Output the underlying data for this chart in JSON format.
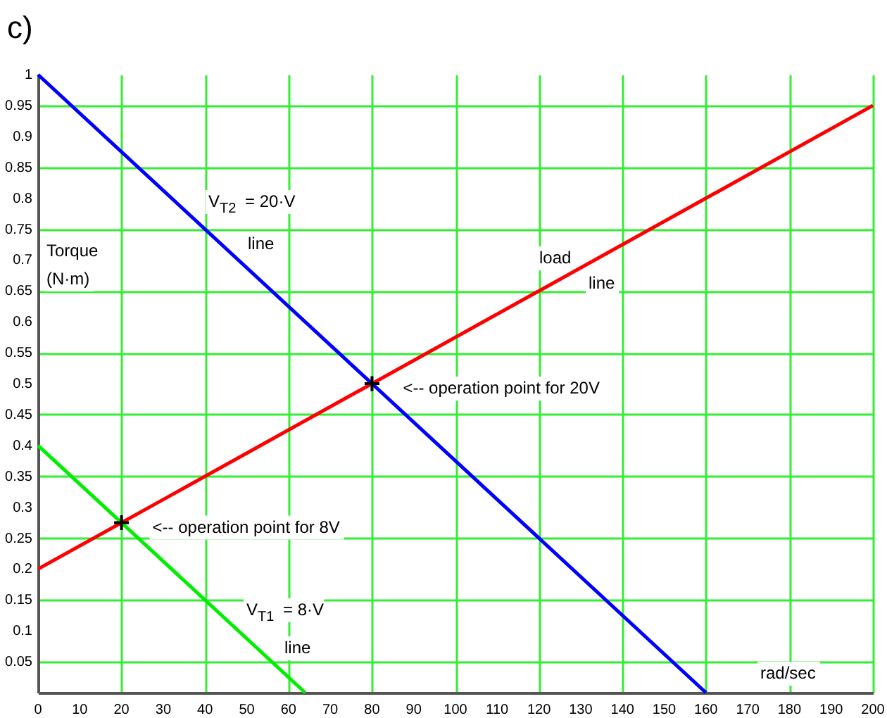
{
  "chart_data": {
    "type": "line",
    "title": "c)",
    "xlabel": "rad/sec",
    "ylabel": "Torque\n(N·m)",
    "xlim": [
      0,
      200
    ],
    "ylim": [
      0,
      1
    ],
    "xticks": [
      0,
      10,
      20,
      30,
      40,
      50,
      60,
      70,
      80,
      90,
      100,
      110,
      120,
      130,
      140,
      150,
      160,
      170,
      180,
      190,
      200
    ],
    "yticks": [
      0.05,
      0.1,
      0.15,
      0.2,
      0.25,
      0.3,
      0.35,
      0.4,
      0.45,
      0.5,
      0.55,
      0.6,
      0.65,
      0.7,
      0.75,
      0.8,
      0.85,
      0.9,
      0.95,
      1
    ],
    "grid": true,
    "series": [
      {
        "color": "#0000ff",
        "x": [
          0,
          160
        ],
        "values": [
          1,
          0
        ]
      },
      {
        "color": "#ff0000",
        "x": [
          0,
          200
        ],
        "values": [
          0.2,
          0.95
        ]
      },
      {
        "color": "#00ee00",
        "x": [
          0,
          64
        ],
        "values": [
          0.4,
          0
        ]
      },
      {
        "type": "scatter",
        "color": "#000000",
        "marker": "cross",
        "x": [
          20,
          80
        ],
        "values": [
          0.275,
          0.5
        ]
      }
    ],
    "annotations": [
      "V$_{T2}$ = 20·V",
      "line",
      "load",
      "line",
      {
        "text": "<-- operation point for 20V",
        "x": 80,
        "y": 0.5
      },
      {
        "text": "<-- operation point for 8V",
        "x": 20,
        "y": 0.275
      },
      "V$_{T1}$ = 8·V",
      "line"
    ]
  }
}
